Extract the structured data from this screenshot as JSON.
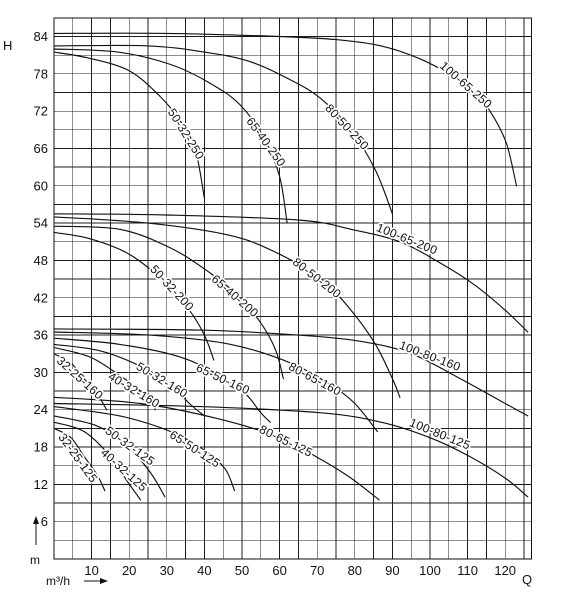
{
  "chart_data": {
    "type": "line",
    "xlabel": "Q",
    "xunit": "m³/h",
    "ylabel": "H",
    "yunit": "m",
    "xlim": [
      0,
      127
    ],
    "ylim": [
      0,
      87
    ],
    "x_ticks": [
      10,
      20,
      30,
      40,
      50,
      60,
      70,
      80,
      90,
      100,
      110,
      120
    ],
    "y_ticks": [
      6,
      12,
      18,
      24,
      30,
      36,
      42,
      48,
      54,
      60,
      66,
      72,
      78,
      84
    ],
    "grid": true,
    "series": [
      {
        "name": "100-65-250",
        "points": [
          [
            0,
            84.5
          ],
          [
            30,
            84.5
          ],
          [
            60,
            84
          ],
          [
            75,
            83.5
          ],
          [
            87,
            82.5
          ],
          [
            97,
            80.5
          ],
          [
            105,
            78
          ],
          [
            112,
            75
          ],
          [
            117,
            71
          ],
          [
            120.5,
            66.5
          ],
          [
            123,
            60
          ]
        ]
      },
      {
        "name": "80-50-250",
        "points": [
          [
            0,
            82.5
          ],
          [
            25,
            82.5
          ],
          [
            40,
            81.5
          ],
          [
            52,
            80
          ],
          [
            63,
            77
          ],
          [
            71,
            74
          ],
          [
            79,
            69
          ],
          [
            85.5,
            62.5
          ],
          [
            90,
            55.5
          ]
        ]
      },
      {
        "name": "65-40-250",
        "points": [
          [
            0,
            82
          ],
          [
            17,
            81.5
          ],
          [
            31,
            79.5
          ],
          [
            41.5,
            76.5
          ],
          [
            49.5,
            73
          ],
          [
            56,
            67.5
          ],
          [
            60,
            61.5
          ],
          [
            62,
            54
          ]
        ]
      },
      {
        "name": "50-32-250",
        "points": [
          [
            0,
            81.5
          ],
          [
            9.5,
            80.5
          ],
          [
            20,
            78.5
          ],
          [
            28,
            74.5
          ],
          [
            33.5,
            70.5
          ],
          [
            37.5,
            66
          ],
          [
            40,
            58
          ]
        ]
      },
      {
        "name": "100-65-200",
        "points": [
          [
            0,
            55.5
          ],
          [
            30,
            55.3
          ],
          [
            65,
            54.5
          ],
          [
            79,
            53
          ],
          [
            92,
            51
          ],
          [
            103,
            47.5
          ],
          [
            112,
            44
          ],
          [
            120,
            40
          ],
          [
            126,
            36.5
          ]
        ]
      },
      {
        "name": "80-50-200",
        "points": [
          [
            0,
            55
          ],
          [
            25,
            54
          ],
          [
            47,
            52
          ],
          [
            60,
            49
          ],
          [
            71,
            45
          ],
          [
            79,
            40
          ],
          [
            85.5,
            34.5
          ],
          [
            90,
            29
          ],
          [
            92,
            26
          ]
        ]
      },
      {
        "name": "65-40-200",
        "points": [
          [
            0,
            53.5
          ],
          [
            17.5,
            53
          ],
          [
            31,
            50
          ],
          [
            41.5,
            46
          ],
          [
            49.5,
            42
          ],
          [
            55.5,
            37.5
          ],
          [
            59,
            33.5
          ],
          [
            61,
            29
          ]
        ]
      },
      {
        "name": "50-32-200",
        "points": [
          [
            0,
            52.5
          ],
          [
            9.5,
            51.5
          ],
          [
            20,
            49
          ],
          [
            29.5,
            44.5
          ],
          [
            36,
            40
          ],
          [
            40,
            36
          ],
          [
            42.5,
            32
          ]
        ]
      },
      {
        "name": "100-80-160",
        "points": [
          [
            0,
            37
          ],
          [
            39,
            36.8
          ],
          [
            65,
            36
          ],
          [
            81.5,
            35
          ],
          [
            95,
            33
          ],
          [
            108,
            29
          ],
          [
            118.5,
            25.5
          ],
          [
            126,
            23
          ]
        ]
      },
      {
        "name": "80-65-160",
        "points": [
          [
            0,
            36.5
          ],
          [
            25.5,
            36
          ],
          [
            47,
            34.5
          ],
          [
            63,
            31.5
          ],
          [
            73.5,
            28
          ],
          [
            80,
            25
          ],
          [
            86,
            20.5
          ]
        ]
      },
      {
        "name": "65-50-160",
        "points": [
          [
            0,
            35.5
          ],
          [
            17.5,
            34.5
          ],
          [
            33.5,
            32.5
          ],
          [
            44,
            29.5
          ],
          [
            51,
            26.5
          ],
          [
            55,
            23.5
          ],
          [
            57.5,
            22
          ]
        ]
      },
      {
        "name": "50-32-160",
        "points": [
          [
            0,
            34.5
          ],
          [
            12,
            33.5
          ],
          [
            23,
            31
          ],
          [
            31,
            28
          ],
          [
            36,
            25
          ],
          [
            40,
            23
          ]
        ]
      },
      {
        "name": "40-32-160",
        "points": [
          [
            0,
            34
          ],
          [
            9.5,
            32.5
          ],
          [
            17.5,
            29.5
          ],
          [
            23,
            27
          ],
          [
            27,
            24
          ]
        ]
      },
      {
        "name": "32-25-160",
        "points": [
          [
            0,
            33
          ],
          [
            4.5,
            31.5
          ],
          [
            8,
            29
          ],
          [
            11.5,
            26.5
          ],
          [
            14,
            24
          ]
        ]
      },
      {
        "name": "100-80-125",
        "points": [
          [
            0,
            25
          ],
          [
            39,
            24.5
          ],
          [
            71,
            23.5
          ],
          [
            87,
            22
          ],
          [
            100,
            19.5
          ],
          [
            110.5,
            16.5
          ],
          [
            120,
            13
          ],
          [
            126,
            10
          ]
        ]
      },
      {
        "name": "80-65-125",
        "points": [
          [
            0,
            26
          ],
          [
            23,
            25
          ],
          [
            44,
            22.5
          ],
          [
            60,
            19.5
          ],
          [
            71,
            16
          ],
          [
            79,
            13
          ],
          [
            86.5,
            9.5
          ]
        ]
      },
      {
        "name": "65-50-125",
        "points": [
          [
            0,
            24.5
          ],
          [
            17.5,
            23
          ],
          [
            31,
            20.5
          ],
          [
            40,
            17.5
          ],
          [
            45.5,
            14.5
          ],
          [
            48,
            11
          ]
        ]
      },
      {
        "name": "50-32-125",
        "points": [
          [
            0,
            23
          ],
          [
            11,
            21.5
          ],
          [
            19,
            18.5
          ],
          [
            25.5,
            14
          ],
          [
            29.5,
            10
          ]
        ]
      },
      {
        "name": "40-32-125",
        "points": [
          [
            0,
            22
          ],
          [
            8,
            20.5
          ],
          [
            15,
            16.5
          ],
          [
            19.5,
            12.5
          ],
          [
            23,
            9.5
          ]
        ]
      },
      {
        "name": "32-25-125",
        "points": [
          [
            0,
            21
          ],
          [
            4.5,
            19.5
          ],
          [
            8,
            16.5
          ],
          [
            11.5,
            13.5
          ],
          [
            13.5,
            11
          ]
        ]
      }
    ]
  }
}
